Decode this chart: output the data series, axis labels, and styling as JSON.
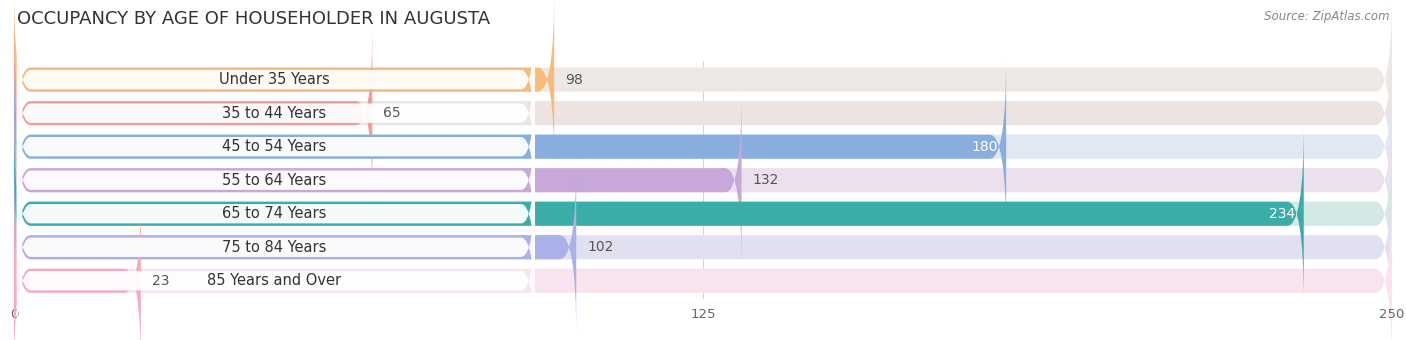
{
  "title": "OCCUPANCY BY AGE OF HOUSEHOLDER IN AUGUSTA",
  "source": "Source: ZipAtlas.com",
  "categories": [
    "Under 35 Years",
    "35 to 44 Years",
    "45 to 54 Years",
    "55 to 64 Years",
    "65 to 74 Years",
    "75 to 84 Years",
    "85 Years and Over"
  ],
  "values": [
    98,
    65,
    180,
    132,
    234,
    102,
    23
  ],
  "bar_colors": [
    "#f5bc7a",
    "#f0a09a",
    "#88aee0",
    "#c8a8d8",
    "#3aada8",
    "#aab0e8",
    "#f5aabe"
  ],
  "bg_colors": [
    "#ede8e4",
    "#ede4e2",
    "#e0e8f2",
    "#eae0ee",
    "#d4e8e6",
    "#e0e0f0",
    "#f8e4ee"
  ],
  "value_colors": [
    "#555555",
    "#555555",
    "#ffffff",
    "#555555",
    "#ffffff",
    "#555555",
    "#555555"
  ],
  "xlim": [
    0,
    250
  ],
  "xticks": [
    0,
    125,
    250
  ],
  "title_fontsize": 13,
  "label_fontsize": 10.5,
  "value_fontsize": 10,
  "background_color": "#ffffff"
}
